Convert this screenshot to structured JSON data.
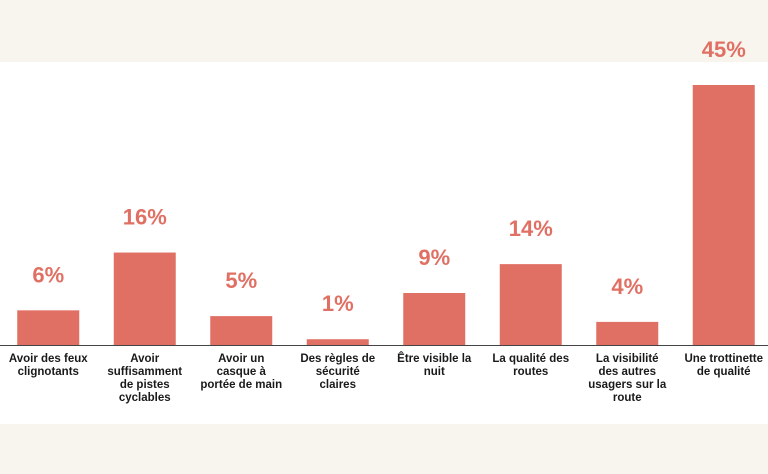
{
  "chart_data": {
    "type": "bar",
    "title": "",
    "xlabel": "",
    "ylabel": "",
    "ylim": [
      0,
      45
    ],
    "grid": false,
    "categories": [
      [
        "Avoir des feux",
        "clignotants"
      ],
      [
        "Avoir",
        "suffisamment",
        "de pistes",
        "cyclables"
      ],
      [
        "Avoir un",
        "casque à",
        "portée de main"
      ],
      [
        "Des règles de",
        "sécurité",
        "claires"
      ],
      [
        "Être visible la",
        "nuit"
      ],
      [
        "La qualité des",
        "routes"
      ],
      [
        "La visibilité",
        "des autres",
        "usagers sur la",
        "route"
      ],
      [
        "Une trottinette",
        "de qualité"
      ]
    ],
    "values": [
      6,
      16,
      5,
      1,
      9,
      14,
      4,
      45
    ],
    "value_labels": [
      "6%",
      "16%",
      "5%",
      "1%",
      "9%",
      "14%",
      "4%",
      "45%"
    ]
  },
  "colors": {
    "bar": "#e07064",
    "label": "#e07064",
    "axis": "#444444",
    "background": "#f8f4ee",
    "panel": "#ffffff"
  }
}
